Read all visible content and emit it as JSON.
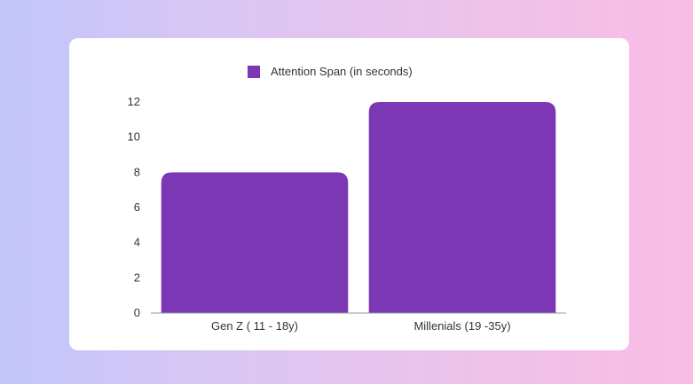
{
  "colors": {
    "bar": "#7b37b4",
    "text": "#333333",
    "axis": "#9a9a9a"
  },
  "chart_data": {
    "type": "bar",
    "categories": [
      "Gen Z ( 11 - 18y)",
      "Millenials (19 -35y)"
    ],
    "series": [
      {
        "name": "Attention Span (in seconds)",
        "values": [
          8,
          12
        ]
      }
    ],
    "ylim": [
      0,
      12
    ],
    "yticks": [
      "0",
      "2",
      "4",
      "6",
      "8",
      "10",
      "12"
    ],
    "grid": false,
    "legend_position": "top"
  }
}
